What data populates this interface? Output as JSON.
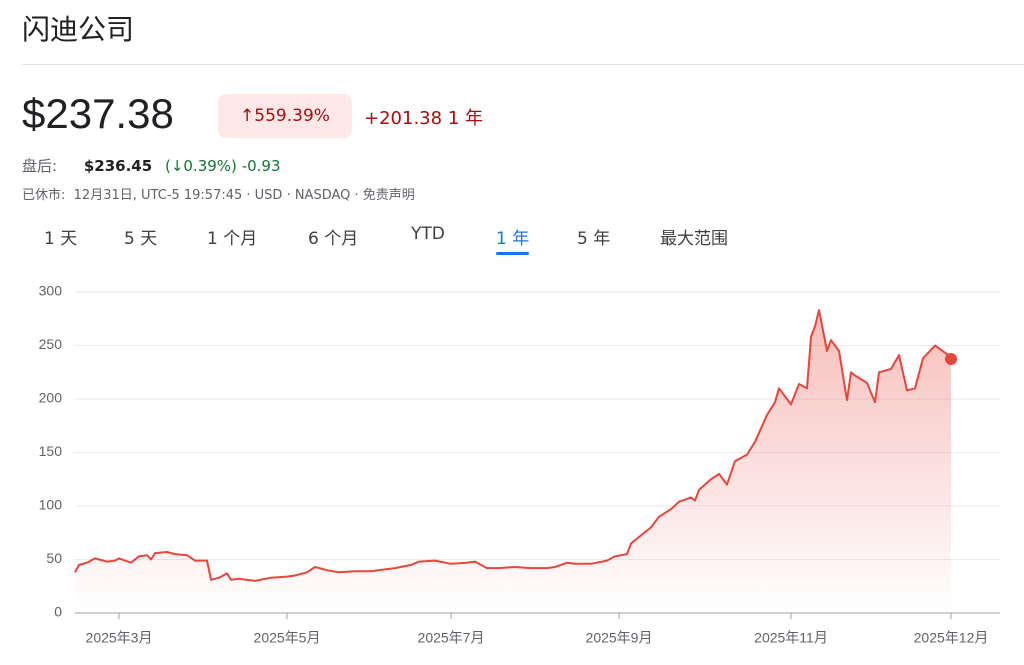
{
  "header": {
    "title": "闪迪公司",
    "price": "$237.38",
    "change_pct": "559.39%",
    "change_abs": "+201.38",
    "period": "1 年",
    "after_hours": {
      "label": "盘后:",
      "price": "$236.45",
      "open_paren": "(",
      "change_pct": "0.39%",
      "close_paren": ")",
      "change_abs": "-0.93"
    },
    "status": "已休市:",
    "info": "12月31日, UTC-5 19:57:45 · USD · NASDAQ · 免责声明"
  },
  "tabs": {
    "items": [
      "1 天",
      "5 天",
      "1 个月",
      "6 个月",
      "YTD",
      "1 年",
      "5 年",
      "最大范围"
    ],
    "selected": 5
  },
  "chart_data": {
    "type": "line",
    "color": "#e8453c",
    "grid": true,
    "x": [
      0,
      1,
      3,
      5,
      8,
      10,
      11,
      14,
      16,
      18,
      19,
      20,
      23,
      25,
      28,
      30,
      33,
      34,
      36,
      38,
      39,
      41,
      45,
      49,
      53,
      55,
      58,
      60,
      63,
      66,
      70,
      74,
      78,
      80,
      84,
      86,
      90,
      94,
      98,
      100,
      103,
      106,
      110,
      114,
      118,
      120,
      123,
      125,
      129,
      133,
      135,
      138,
      139,
      141,
      144,
      146,
      149,
      151,
      154,
      155,
      156,
      159,
      161,
      163,
      165,
      168,
      170,
      173,
      175,
      176,
      179,
      181,
      183,
      184,
      185,
      186,
      188,
      189,
      191,
      193,
      194,
      195,
      198,
      200,
      201,
      204,
      206,
      208,
      210,
      212,
      215,
      218,
      219
    ],
    "values": [
      38,
      45,
      47,
      51,
      48,
      49,
      51,
      47,
      53,
      54,
      50,
      56,
      57,
      55,
      54,
      49,
      49,
      31,
      33,
      37,
      31,
      32,
      30,
      33,
      34,
      35,
      38,
      43,
      40,
      38,
      39,
      39,
      41,
      42,
      45,
      48,
      49,
      46,
      47,
      48,
      42,
      42,
      43,
      42,
      42,
      43,
      47,
      46,
      46,
      49,
      53,
      55,
      65,
      71,
      80,
      90,
      97,
      104,
      108,
      105,
      115,
      125,
      130,
      120,
      142,
      148,
      160,
      185,
      197,
      210,
      195,
      214,
      210,
      258,
      268,
      283,
      245,
      255,
      245,
      199,
      225,
      222,
      215,
      197,
      225,
      228,
      241,
      208,
      210,
      238,
      250,
      242,
      237.38
    ],
    "xlim": [
      0,
      219
    ],
    "xticks": [
      {
        "value": 11,
        "label": "2025年3月"
      },
      {
        "value": 53,
        "label": "2025年5月"
      },
      {
        "value": 94,
        "label": "2025年7月"
      },
      {
        "value": 136,
        "label": "2025年9月"
      },
      {
        "value": 179,
        "label": "2025年11月"
      },
      {
        "value": 219,
        "label": "2025年12月"
      }
    ],
    "ylim": [
      0,
      300
    ],
    "yticks": [
      0,
      50,
      100,
      150,
      200,
      250,
      300
    ]
  }
}
